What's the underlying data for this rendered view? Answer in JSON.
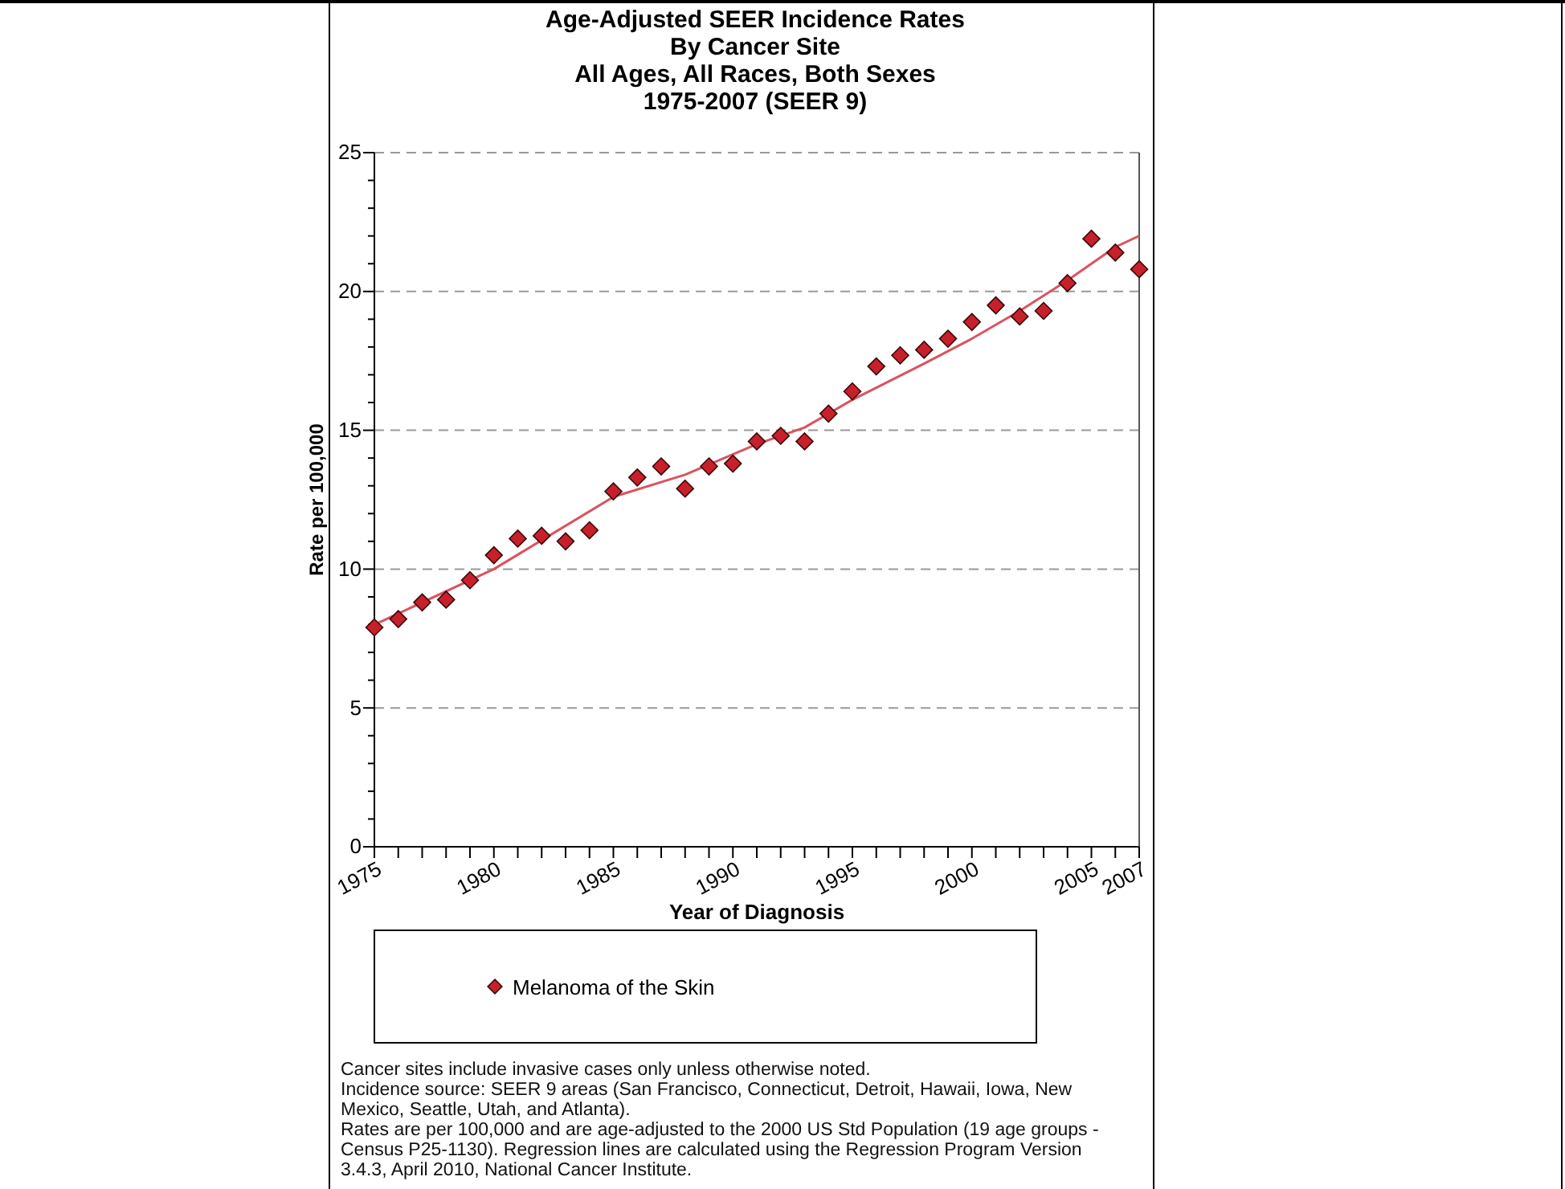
{
  "chart_data": {
    "type": "scatter",
    "title": "Age-Adjusted SEER Incidence Rates\nBy Cancer Site\nAll Ages, All Races, Both Sexes\n1975-2007 (SEER 9)",
    "xlabel": "Year of Diagnosis",
    "ylabel": "Rate per 100,000",
    "x": [
      1975,
      1976,
      1977,
      1978,
      1979,
      1980,
      1981,
      1982,
      1983,
      1984,
      1985,
      1986,
      1987,
      1988,
      1989,
      1990,
      1991,
      1992,
      1993,
      1994,
      1995,
      1996,
      1997,
      1998,
      1999,
      2000,
      2001,
      2002,
      2003,
      2004,
      2005,
      2006,
      2007
    ],
    "series": [
      {
        "name": "Melanoma of the Skin",
        "type": "scatter",
        "color": "#c8202a",
        "marker": "diamond",
        "values": [
          7.9,
          8.2,
          8.8,
          8.9,
          9.6,
          10.5,
          11.1,
          11.2,
          11.0,
          11.4,
          12.8,
          13.3,
          13.7,
          12.9,
          13.7,
          13.8,
          14.6,
          14.8,
          14.6,
          15.6,
          16.4,
          17.3,
          17.7,
          17.9,
          18.3,
          18.9,
          19.5,
          19.1,
          19.3,
          20.3,
          21.9,
          21.4,
          20.8
        ]
      },
      {
        "type": "line",
        "color": "#d9545e",
        "marker": "none",
        "line_style": "solid",
        "x": [
          1975,
          1980,
          1985,
          1988,
          1991,
          1993,
          1995,
          1998,
          2000,
          2002,
          2004,
          2006,
          2007
        ],
        "values": [
          8.0,
          10.0,
          12.6,
          13.4,
          14.5,
          15.1,
          16.1,
          17.4,
          18.3,
          19.3,
          20.4,
          21.6,
          22.0
        ]
      }
    ],
    "xlim": [
      1975,
      2007
    ],
    "ylim": [
      0,
      25
    ],
    "xticks": [
      1975,
      {
        "value": 1976,
        "label": null
      },
      {
        "value": 1977,
        "label": null
      },
      {
        "value": 1978,
        "label": null
      },
      {
        "value": 1979,
        "label": null
      },
      1980,
      {
        "value": 1981,
        "label": null
      },
      {
        "value": 1982,
        "label": null
      },
      {
        "value": 1983,
        "label": null
      },
      {
        "value": 1984,
        "label": null
      },
      1985,
      {
        "value": 1986,
        "label": null
      },
      {
        "value": 1987,
        "label": null
      },
      {
        "value": 1988,
        "label": null
      },
      {
        "value": 1989,
        "label": null
      },
      1990,
      {
        "value": 1991,
        "label": null
      },
      {
        "value": 1992,
        "label": null
      },
      {
        "value": 1993,
        "label": null
      },
      {
        "value": 1994,
        "label": null
      },
      1995,
      {
        "value": 1996,
        "label": null
      },
      {
        "value": 1997,
        "label": null
      },
      {
        "value": 1998,
        "label": null
      },
      {
        "value": 1999,
        "label": null
      },
      2000,
      {
        "value": 2001,
        "label": null
      },
      {
        "value": 2002,
        "label": null
      },
      {
        "value": 2003,
        "label": null
      },
      {
        "value": 2004,
        "label": null
      },
      2005,
      {
        "value": 2006,
        "label": null
      },
      2007
    ],
    "yticks": [
      0,
      {
        "value": 1,
        "label": null
      },
      {
        "value": 2,
        "label": null
      },
      {
        "value": 3,
        "label": null
      },
      {
        "value": 4,
        "label": null
      },
      5,
      {
        "value": 6,
        "label": null
      },
      {
        "value": 7,
        "label": null
      },
      {
        "value": 8,
        "label": null
      },
      {
        "value": 9,
        "label": null
      },
      10,
      {
        "value": 11,
        "label": null
      },
      {
        "value": 12,
        "label": null
      },
      {
        "value": 13,
        "label": null
      },
      {
        "value": 14,
        "label": null
      },
      15,
      {
        "value": 16,
        "label": null
      },
      {
        "value": 17,
        "label": null
      },
      {
        "value": 18,
        "label": null
      },
      {
        "value": 19,
        "label": null
      },
      20,
      {
        "value": 21,
        "label": null
      },
      {
        "value": 22,
        "label": null
      },
      {
        "value": 23,
        "label": null
      },
      {
        "value": 24,
        "label": null
      },
      25
    ],
    "grid": "y",
    "legend": "bottom",
    "annotations": [
      "Cancer sites include invasive cases only unless otherwise noted.",
      "Incidence source: SEER 9 areas (San Francisco, Connecticut, Detroit, Hawaii, Iowa, New Mexico, Seattle, Utah, and Atlanta).",
      "Rates are per 100,000 and are age-adjusted to the 2000 US Std Population (19 age groups - Census P25-1130). Regression lines are calculated using the Regression Program Version 3.4.3, April 2010, National Cancer Institute."
    ]
  }
}
